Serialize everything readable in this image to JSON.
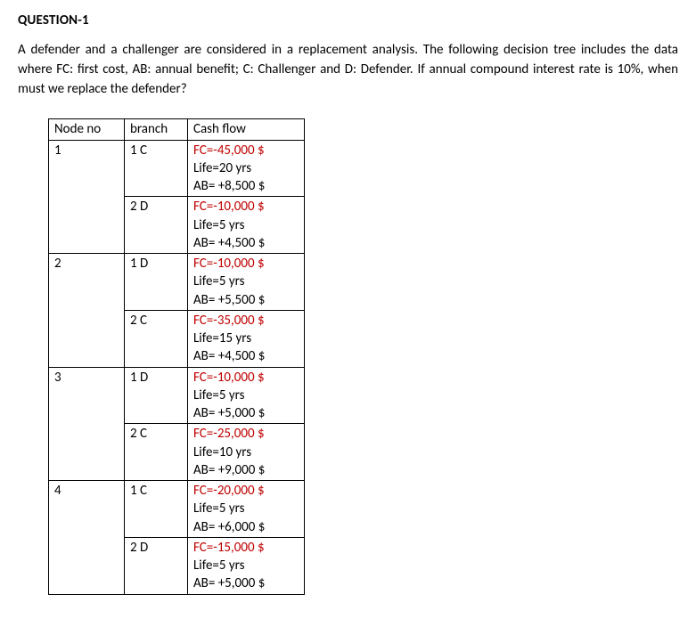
{
  "title": "QUESTION-1",
  "body": "A defender and a challenger are considered in a replacement analysis. The following decision tree includes the data where FC: first cost, AB: annual benefit; C: Challenger and D: Defender. If annual compound interest rate is 10%, when must we replace the defender?",
  "table": {
    "headers": {
      "node": "Node no",
      "branch": "branch",
      "cash": "Cash flow"
    },
    "rows": [
      {
        "node": "1",
        "branches": [
          {
            "label": "1 C",
            "lines": [
              {
                "t": "FC=-45,000 $",
                "red": true
              },
              {
                "t": "Life=20 yrs",
                "red": false
              },
              {
                "t": "AB= +8,500 $",
                "red": false
              }
            ]
          },
          {
            "label": "2 D",
            "lines": [
              {
                "t": "FC=-10,000 $",
                "red": true
              },
              {
                "t": "Life=5 yrs",
                "red": false
              },
              {
                "t": "AB= +4,500 $",
                "red": false
              }
            ]
          }
        ]
      },
      {
        "node": "2",
        "branches": [
          {
            "label": "1 D",
            "lines": [
              {
                "t": "FC=-10,000 $",
                "red": true
              },
              {
                "t": "Life=5 yrs",
                "red": false
              },
              {
                "t": "AB= +5,500 $",
                "red": false
              }
            ]
          },
          {
            "label": "2 C",
            "lines": [
              {
                "t": "FC=-35,000 $",
                "red": true
              },
              {
                "t": "Life=15 yrs",
                "red": false
              },
              {
                "t": "AB= +4,500 $",
                "red": false
              }
            ]
          }
        ]
      },
      {
        "node": "3",
        "branches": [
          {
            "label": "1 D",
            "lines": [
              {
                "t": "FC=-10,000 $",
                "red": true
              },
              {
                "t": "Life=5 yrs",
                "red": false
              },
              {
                "t": "AB= +5,000 $",
                "red": false
              }
            ]
          },
          {
            "label": "2 C",
            "lines": [
              {
                "t": "FC=-25,000 $",
                "red": true
              },
              {
                "t": "Life=10 yrs",
                "red": false
              },
              {
                "t": "AB= +9,000 $",
                "red": false
              }
            ]
          }
        ]
      },
      {
        "node": "4",
        "branches": [
          {
            "label": "1 C",
            "lines": [
              {
                "t": "FC=-20,000 $",
                "red": true
              },
              {
                "t": "Life=5 yrs",
                "red": false
              },
              {
                "t": "AB= +6,000 $",
                "red": false
              }
            ]
          },
          {
            "label": "2 D",
            "lines": [
              {
                "t": "FC=-15,000 $",
                "red": true
              },
              {
                "t": "Life=5 yrs",
                "red": false
              },
              {
                "t": "AB= +5,000 $",
                "red": false
              }
            ]
          }
        ]
      }
    ]
  }
}
